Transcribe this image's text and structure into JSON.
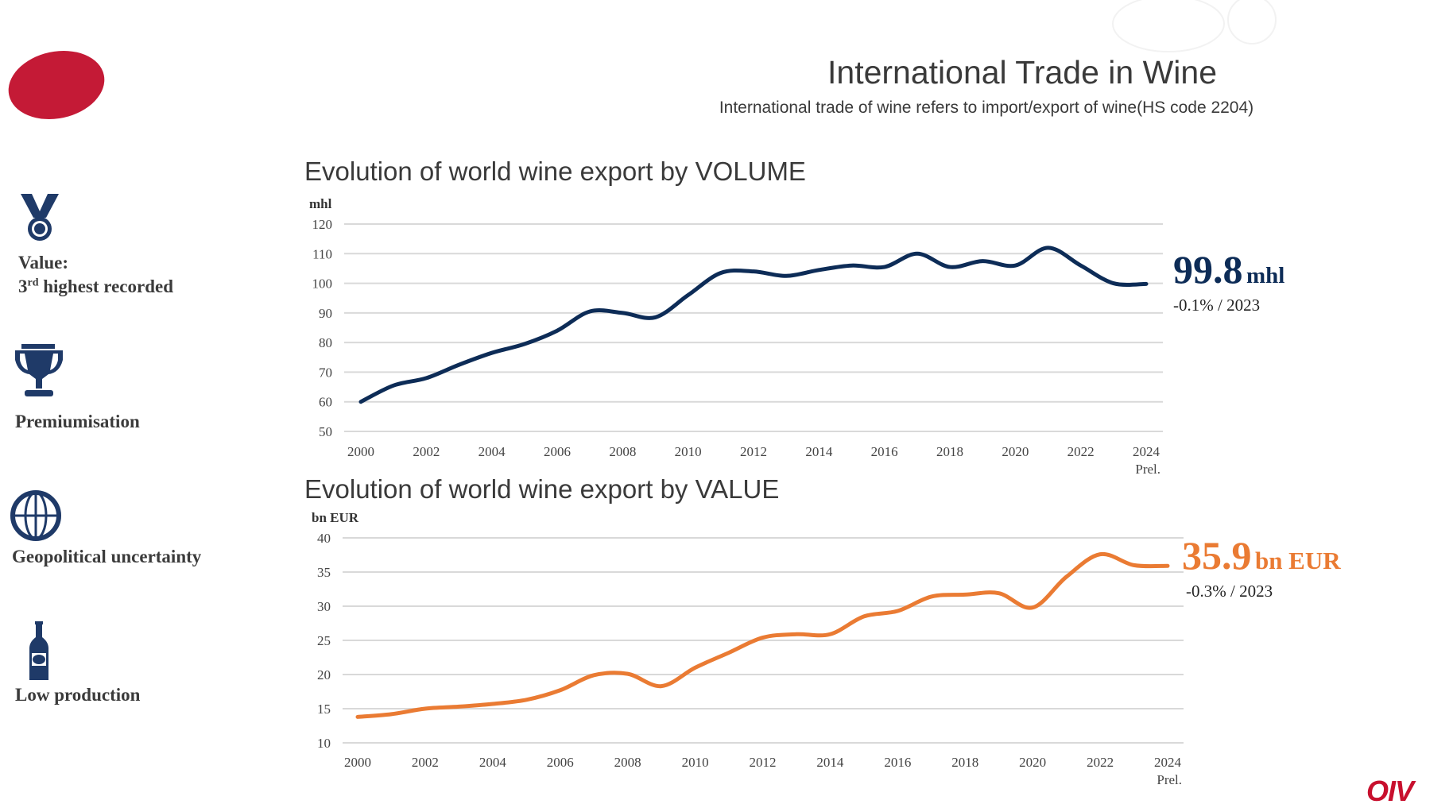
{
  "header": {
    "title": "International Trade in Wine",
    "subtitle": "International trade of wine refers to import/export of wine(HS code 2204)"
  },
  "sidebar": {
    "items": [
      {
        "icon": "medal-icon",
        "line1": "Value:",
        "line2_num": "3",
        "line2_sup": "rd",
        "line2_rest": " highest recorded"
      },
      {
        "icon": "trophy-icon",
        "label": "Premiumisation"
      },
      {
        "icon": "globe-icon",
        "label": "Geopolitical  uncertainty"
      },
      {
        "icon": "wine-bottle-icon",
        "label": "Low production"
      }
    ]
  },
  "colors": {
    "volume": "#0d2c57",
    "value": "#ea7b33",
    "accent": "#c8102e",
    "icon": "#1f3a68"
  },
  "callouts": {
    "volume": {
      "value": "99.8",
      "unit": "mhl",
      "change": "-0.1% /  2023"
    },
    "value": {
      "value": "35.9",
      "unit": "bn EUR",
      "change": "-0.3% /  2023"
    }
  },
  "footer": {
    "logo": "OIV"
  },
  "chart_data": [
    {
      "type": "line",
      "title": "Evolution of world wine export by VOLUME",
      "ylabel": "mhl",
      "xlabel": "",
      "ylim": [
        50,
        120
      ],
      "yticks": [
        50,
        60,
        70,
        80,
        90,
        100,
        110,
        120
      ],
      "xticks": [
        "2000",
        "2002",
        "2004",
        "2006",
        "2008",
        "2010",
        "2012",
        "2014",
        "2016",
        "2018",
        "2020",
        "2022",
        "2024"
      ],
      "x_note": "Prel.",
      "grid": true,
      "x": [
        2000,
        2001,
        2002,
        2003,
        2004,
        2005,
        2006,
        2007,
        2008,
        2009,
        2010,
        2011,
        2012,
        2013,
        2014,
        2015,
        2016,
        2017,
        2018,
        2019,
        2020,
        2021,
        2022,
        2023,
        2024
      ],
      "series": [
        {
          "name": "Volume",
          "values": [
            60,
            65.5,
            68,
            72.5,
            76.5,
            79.5,
            84,
            90.5,
            90,
            88.5,
            96,
            103.5,
            104,
            102.5,
            104.5,
            106,
            105.5,
            110,
            105.5,
            107.5,
            106,
            112,
            106,
            100,
            99.8
          ]
        }
      ]
    },
    {
      "type": "line",
      "title": "Evolution of world wine export by VALUE",
      "ylabel": "bn EUR",
      "xlabel": "",
      "ylim": [
        10,
        40
      ],
      "yticks": [
        10,
        15,
        20,
        25,
        30,
        35,
        40
      ],
      "xticks": [
        "2000",
        "2002",
        "2004",
        "2006",
        "2008",
        "2010",
        "2012",
        "2014",
        "2016",
        "2018",
        "2020",
        "2022",
        "2024"
      ],
      "x_note": "Prel.",
      "grid": true,
      "x": [
        2000,
        2001,
        2002,
        2003,
        2004,
        2005,
        2006,
        2007,
        2008,
        2009,
        2010,
        2011,
        2012,
        2013,
        2014,
        2015,
        2016,
        2017,
        2018,
        2019,
        2020,
        2021,
        2022,
        2023,
        2024
      ],
      "series": [
        {
          "name": "Value",
          "values": [
            13.8,
            14.2,
            15.0,
            15.3,
            15.7,
            16.3,
            17.7,
            19.9,
            20.1,
            18.3,
            21.0,
            23.2,
            25.4,
            25.9,
            25.9,
            28.5,
            29.3,
            31.4,
            31.7,
            31.9,
            29.8,
            34.3,
            37.6,
            36.0,
            35.9
          ]
        }
      ]
    }
  ]
}
